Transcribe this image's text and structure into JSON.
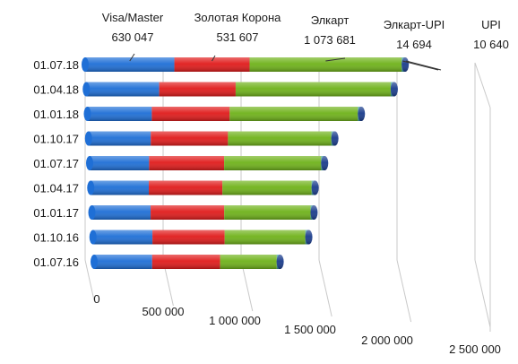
{
  "chart_data": {
    "type": "bar",
    "orientation": "horizontal",
    "stacked": true,
    "three_d": true,
    "categories": [
      "01.07.16",
      "01.10.16",
      "01.01.17",
      "01.04.17",
      "01.07.17",
      "01.10.17",
      "01.01.18",
      "01.04.18",
      "01.07.18"
    ],
    "series": [
      {
        "name": "Visa/Master",
        "color": "#1f6fd6",
        "values": [
          410000,
          420000,
          415000,
          410000,
          420000,
          440000,
          455000,
          515000,
          630047
        ]
      },
      {
        "name": "Золотая Корона",
        "color": "#e01b1b",
        "values": [
          480000,
          510000,
          520000,
          520000,
          530000,
          545000,
          550000,
          540000,
          531607
        ]
      },
      {
        "name": "Элкарт",
        "color": "#6fb21a",
        "values": [
          400000,
          570000,
          610000,
          630000,
          685000,
          730000,
          905000,
          1095000,
          1073681
        ]
      },
      {
        "name": "Элкарт-UPI",
        "color": "#3a9a9a",
        "values": [
          14000,
          14000,
          14000,
          14500,
          14500,
          14500,
          14600,
          14700,
          14694
        ]
      },
      {
        "name": "UPI",
        "color": "#1a3c8c",
        "values": [
          10000,
          10200,
          10300,
          10400,
          10500,
          10500,
          10600,
          10600,
          10640
        ]
      }
    ],
    "annotations": [
      {
        "series": "Visa/Master",
        "name": "Visa/Master",
        "value": "630 047"
      },
      {
        "series": "Золотая Корона",
        "name": "Золотая Корона",
        "value": "531 607"
      },
      {
        "series": "Элкарт",
        "name": "Элкарт",
        "value": "1 073 681"
      },
      {
        "series": "Элкарт-UPI",
        "name": "Элкарт-UPI",
        "value": "14 694"
      },
      {
        "series": "UPI",
        "name": "UPI",
        "value": "10 640"
      }
    ],
    "x_ticks": [
      0,
      500000,
      1000000,
      1500000,
      2000000,
      2500000
    ],
    "x_tick_labels": [
      "0",
      "500 000",
      "1 000 000",
      "1 500 000",
      "2 000 000",
      "2 500 000"
    ],
    "xlim": [
      0,
      2500000
    ],
    "grid": true,
    "legend": "none",
    "title": "",
    "xlabel": "",
    "ylabel": ""
  }
}
